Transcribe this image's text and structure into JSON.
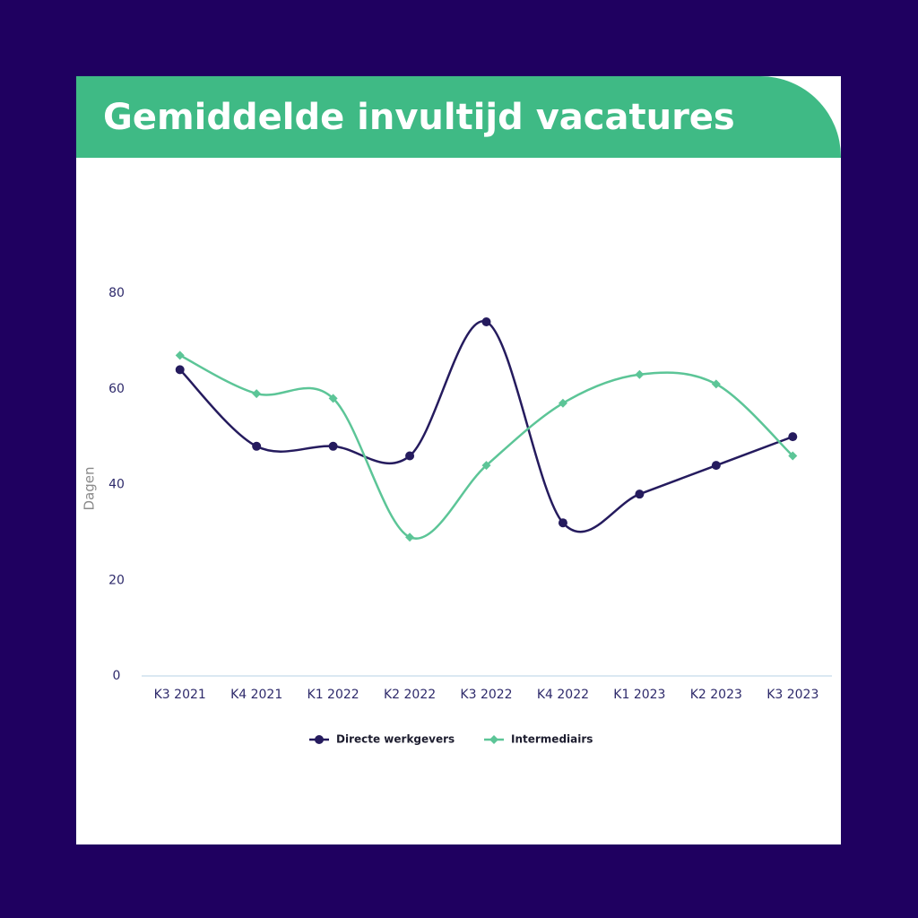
{
  "chart_data": {
    "type": "line",
    "title": "Gemiddelde invultijd vacatures",
    "ylabel": "Dagen",
    "categories": [
      "K3 2021",
      "K4 2021",
      "K1 2022",
      "K2 2022",
      "K3 2022",
      "K4 2022",
      "K1 2023",
      "K2 2023",
      "K3 2023"
    ],
    "series": [
      {
        "name": "Directe werkgevers",
        "color": "#251b5e",
        "marker": "circle",
        "values": [
          64,
          48,
          48,
          46,
          74,
          32,
          38,
          44,
          50
        ]
      },
      {
        "name": "Intermediairs",
        "color": "#5cc597",
        "marker": "diamond",
        "values": [
          67,
          59,
          58,
          29,
          44,
          57,
          63,
          61,
          46
        ]
      }
    ],
    "ylim": [
      0,
      80
    ],
    "yticks": [
      0,
      20,
      40,
      60,
      80
    ],
    "grid": false,
    "smooth": true,
    "legend": "bottom"
  }
}
